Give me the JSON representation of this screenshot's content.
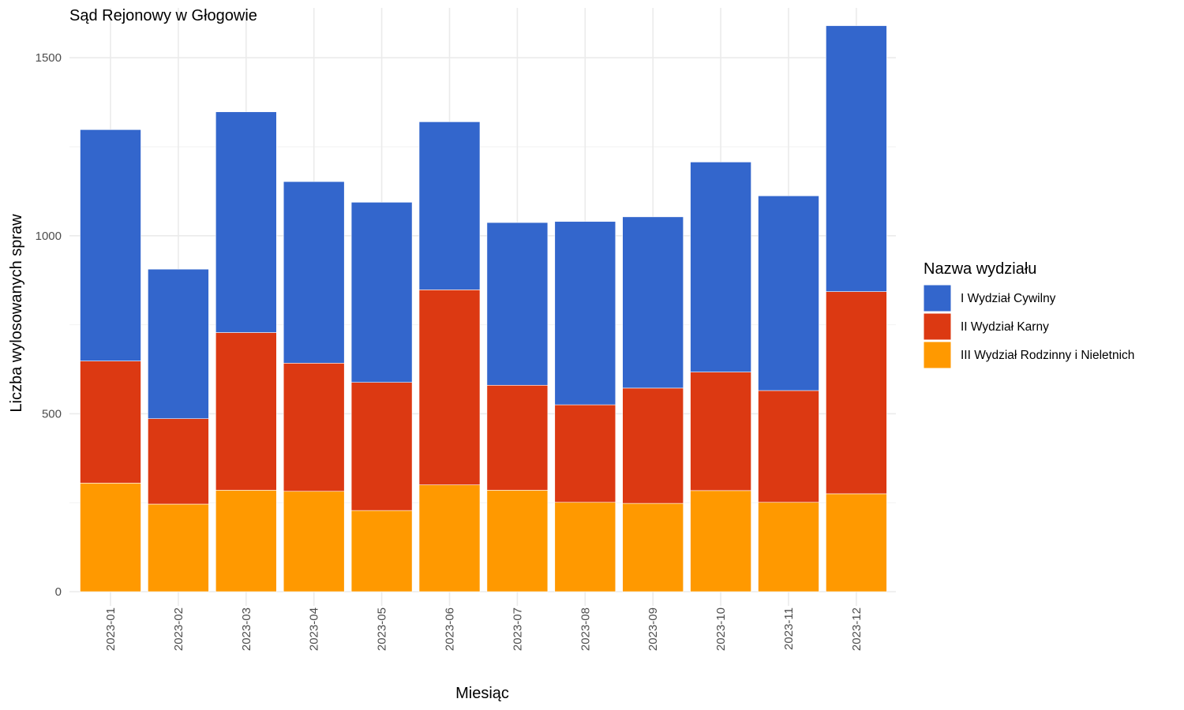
{
  "chart_data": {
    "type": "bar",
    "stacked": true,
    "title": "Sąd Rejonowy w Głogowie",
    "xlabel": "Miesiąc",
    "ylabel": "Liczba wylosowanych spraw",
    "ylim": [
      0,
      1640
    ],
    "yticks": [
      0,
      500,
      1000,
      1500
    ],
    "grid": true,
    "legend": {
      "title": "Nazwa wydziału",
      "position": "right"
    },
    "categories": [
      "2023-01",
      "2023-02",
      "2023-03",
      "2023-04",
      "2023-05",
      "2023-06",
      "2023-07",
      "2023-08",
      "2023-09",
      "2023-10",
      "2023-11",
      "2023-12"
    ],
    "series": [
      {
        "name": "III Wydział Rodzinny i Nieletnich",
        "color": "#FF9900",
        "values": [
          305,
          246,
          285,
          282,
          228,
          300,
          285,
          251,
          248,
          284,
          251,
          275
        ]
      },
      {
        "name": "II Wydział Karny",
        "color": "#DC3912",
        "values": [
          343,
          240,
          443,
          360,
          360,
          548,
          295,
          274,
          324,
          333,
          314,
          568
        ]
      },
      {
        "name": "I Wydział Cywilny",
        "color": "#3366CC",
        "values": [
          650,
          420,
          620,
          510,
          506,
          472,
          457,
          515,
          481,
          590,
          547,
          747
        ]
      }
    ],
    "legend_order": [
      "I Wydział Cywilny",
      "II Wydział Karny",
      "III Wydział Rodzinny i Nieletnich"
    ]
  }
}
